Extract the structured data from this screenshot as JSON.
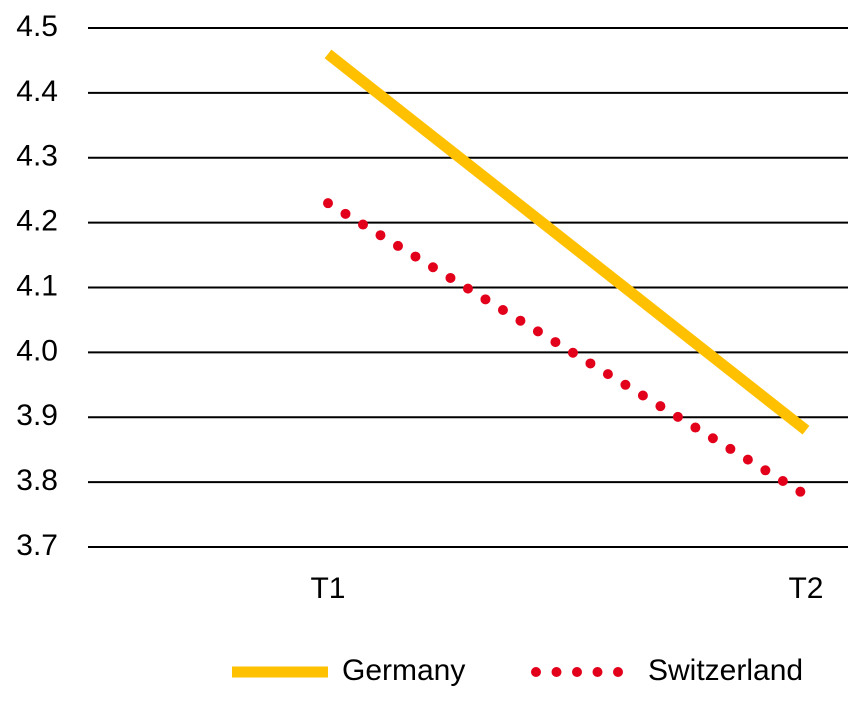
{
  "chart_data": {
    "type": "line",
    "categories": [
      "T1",
      "T2"
    ],
    "series": [
      {
        "name": "Germany",
        "color": "#ffc000",
        "style": "solid",
        "values": [
          4.46,
          3.88
        ]
      },
      {
        "name": "Switzerland",
        "color": "#e3001b",
        "style": "dotted",
        "values": [
          4.23,
          3.78
        ]
      }
    ],
    "ylim": [
      3.7,
      4.5
    ],
    "yticks": [
      3.7,
      3.8,
      3.9,
      {
        "value": 4,
        "label": "4.0"
      },
      4.1,
      4.2,
      4.3,
      4.4,
      4.5
    ],
    "grid": true,
    "legend": "bottom"
  }
}
